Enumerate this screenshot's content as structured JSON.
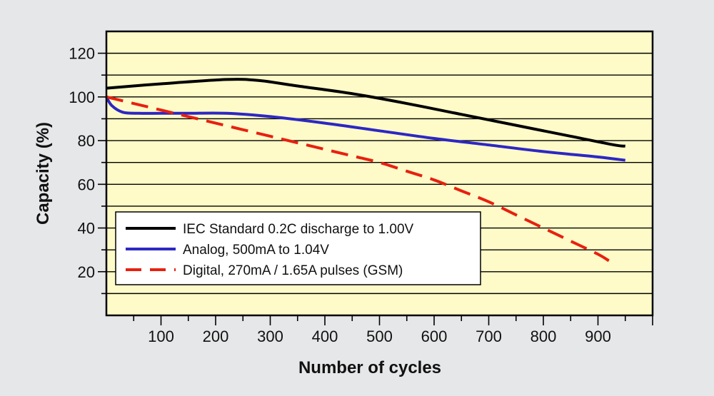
{
  "chart_data": {
    "type": "line",
    "title": "",
    "xlabel": "Number of cycles",
    "ylabel": "Capacity (%)",
    "xlim": [
      0,
      1000
    ],
    "ylim": [
      0,
      130
    ],
    "x_ticks": [
      100,
      200,
      300,
      400,
      500,
      600,
      700,
      800,
      900
    ],
    "y_ticks": [
      20,
      40,
      60,
      80,
      100,
      120
    ],
    "grid": "horizontal",
    "legend_position": "lower-left",
    "series": [
      {
        "name": "IEC Standard 0.2C discharge to 1.00V",
        "color": "#000000",
        "style": "solid",
        "x": [
          0,
          100,
          220,
          280,
          350,
          450,
          550,
          650,
          750,
          850,
          930,
          950
        ],
        "y": [
          104,
          106,
          108,
          107.5,
          105,
          101.5,
          97,
          92,
          87,
          82,
          78,
          77.5
        ]
      },
      {
        "name": "Analog, 500mA to 1.04V",
        "color": "#2d27c4",
        "style": "solid",
        "x": [
          0,
          10,
          30,
          60,
          100,
          150,
          220,
          300,
          400,
          500,
          600,
          700,
          800,
          900,
          950
        ],
        "y": [
          100,
          96,
          93,
          92.5,
          92.5,
          92.5,
          92.5,
          91,
          88,
          84.5,
          81,
          78,
          75,
          72.5,
          71
        ]
      },
      {
        "name": "Digital, 270mA / 1.65A pulses (GSM)",
        "color": "#e8200f",
        "style": "dashed",
        "x": [
          0,
          50,
          100,
          150,
          200,
          250,
          300,
          350,
          400,
          450,
          500,
          550,
          600,
          650,
          700,
          750,
          800,
          850,
          900,
          920
        ],
        "y": [
          100,
          97,
          94,
          91,
          88,
          85,
          82,
          79,
          76,
          73,
          70,
          66,
          62,
          57,
          52,
          46,
          40,
          34,
          28,
          25
        ]
      }
    ]
  }
}
